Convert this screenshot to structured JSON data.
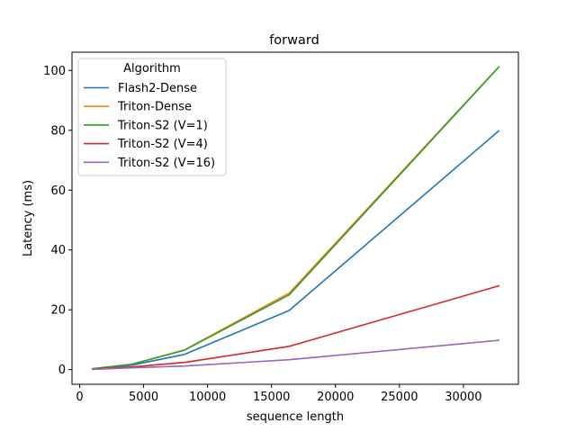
{
  "chart_data": {
    "type": "line",
    "title": "forward",
    "xlabel": "sequence length",
    "ylabel": "Latency (ms)",
    "xlim": [
      -600,
      34300
    ],
    "ylim": [
      -4.9,
      106.1
    ],
    "xticks": [
      0,
      5000,
      10000,
      15000,
      20000,
      25000,
      30000
    ],
    "yticks": [
      0,
      20,
      40,
      60,
      80,
      100
    ],
    "grid": false,
    "legend": {
      "title": "Algorithm",
      "placement": "upper-left"
    },
    "x": [
      1024,
      4096,
      8192,
      16384,
      32768
    ],
    "series": [
      {
        "name": "Flash2-Dense",
        "color": "#1f77b4",
        "values": [
          0.2,
          1.5,
          5.1,
          19.8,
          79.8
        ]
      },
      {
        "name": "Triton-Dense",
        "color": "#ff7f0e",
        "values": [
          0.3,
          1.8,
          6.6,
          25.6,
          101.2
        ]
      },
      {
        "name": "Triton-S2 (V=1)",
        "color": "#2ca02c",
        "values": [
          0.3,
          1.8,
          6.5,
          25.0,
          101.1
        ]
      },
      {
        "name": "Triton-S2 (V=4)",
        "color": "#d62728",
        "values": [
          0.2,
          0.9,
          2.4,
          7.8,
          28.0
        ]
      },
      {
        "name": "Triton-S2 (V=16)",
        "color": "#9467bd",
        "values": [
          0.1,
          0.6,
          1.2,
          3.3,
          9.8
        ]
      }
    ]
  }
}
